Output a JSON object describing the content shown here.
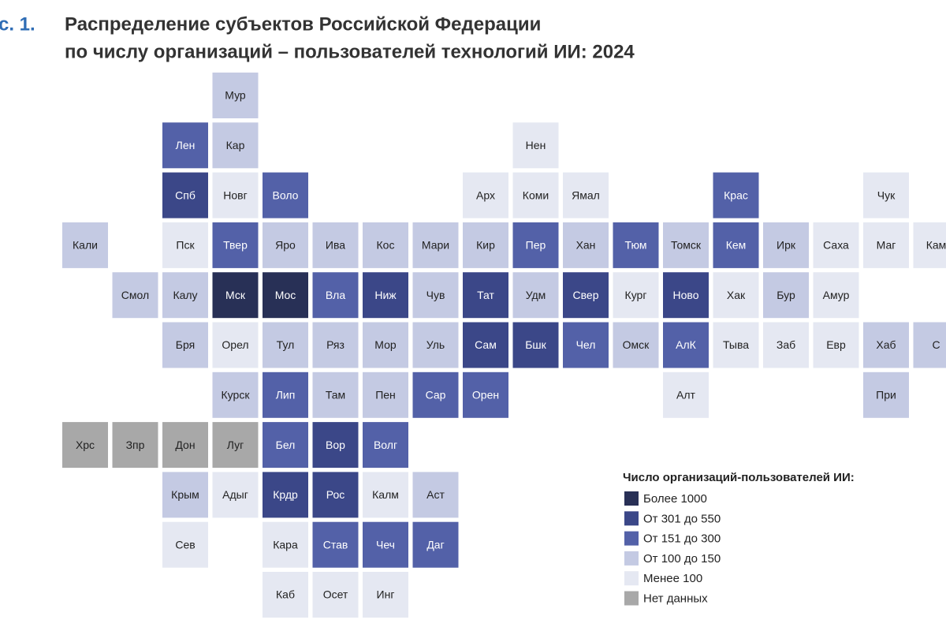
{
  "header": {
    "figure": "с. 1.",
    "title_line1": "Распределение субъектов Российской Федерации",
    "title_line2": "по числу организаций – пользователей технологий ИИ: 2024"
  },
  "legend": {
    "title": "Число организаций-пользователей ИИ:",
    "items": [
      {
        "label": "Более 1000",
        "color": "#283056"
      },
      {
        "label": "От 301 до 550",
        "color": "#3b4788"
      },
      {
        "label": "От 151 до 300",
        "color": "#5361a8"
      },
      {
        "label": "От 100 до 150",
        "color": "#c4cae3"
      },
      {
        "label": "Менее 100",
        "color": "#e5e8f2"
      },
      {
        "label": "Нет данных",
        "color": "#a8a8a8"
      }
    ]
  },
  "grid": [
    [
      null,
      null,
      null,
      {
        "label": "Мур",
        "level": 3
      },
      null,
      null,
      null,
      null,
      null,
      null,
      null,
      null,
      null,
      null,
      null,
      null,
      null,
      null
    ],
    [
      null,
      null,
      {
        "label": "Лен",
        "level": 2
      },
      {
        "label": "Кар",
        "level": 3
      },
      null,
      null,
      null,
      null,
      null,
      {
        "label": "Нен",
        "level": 4
      },
      null,
      null,
      null,
      null,
      null,
      null,
      null,
      null
    ],
    [
      null,
      null,
      {
        "label": "Спб",
        "level": 1
      },
      {
        "label": "Новг",
        "level": 4
      },
      {
        "label": "Воло",
        "level": 2
      },
      null,
      null,
      null,
      {
        "label": "Арх",
        "level": 4
      },
      {
        "label": "Коми",
        "level": 4
      },
      {
        "label": "Ямал",
        "level": 4
      },
      null,
      null,
      {
        "label": "Крас",
        "level": 2
      },
      null,
      null,
      {
        "label": "Чук",
        "level": 4
      },
      null
    ],
    [
      {
        "label": "Кали",
        "level": 3
      },
      null,
      {
        "label": "Пск",
        "level": 4
      },
      {
        "label": "Твер",
        "level": 2
      },
      {
        "label": "Яро",
        "level": 3
      },
      {
        "label": "Ива",
        "level": 3
      },
      {
        "label": "Кос",
        "level": 3
      },
      {
        "label": "Мари",
        "level": 3
      },
      {
        "label": "Кир",
        "level": 3
      },
      {
        "label": "Пер",
        "level": 2
      },
      {
        "label": "Хан",
        "level": 3
      },
      {
        "label": "Тюм",
        "level": 2
      },
      {
        "label": "Томск",
        "level": 3
      },
      {
        "label": "Кем",
        "level": 2
      },
      {
        "label": "Ирк",
        "level": 3
      },
      {
        "label": "Саха",
        "level": 4
      },
      {
        "label": "Маг",
        "level": 4
      },
      {
        "label": "Кам",
        "level": 4
      }
    ],
    [
      null,
      {
        "label": "Смол",
        "level": 3
      },
      {
        "label": "Калу",
        "level": 3
      },
      {
        "label": "Мск",
        "level": 0
      },
      {
        "label": "Мос",
        "level": 0
      },
      {
        "label": "Вла",
        "level": 2
      },
      {
        "label": "Ниж",
        "level": 1
      },
      {
        "label": "Чув",
        "level": 3
      },
      {
        "label": "Тат",
        "level": 1
      },
      {
        "label": "Удм",
        "level": 3
      },
      {
        "label": "Свер",
        "level": 1
      },
      {
        "label": "Кург",
        "level": 4
      },
      {
        "label": "Ново",
        "level": 1
      },
      {
        "label": "Хак",
        "level": 4
      },
      {
        "label": "Бур",
        "level": 3
      },
      {
        "label": "Амур",
        "level": 4
      },
      null,
      null
    ],
    [
      null,
      null,
      {
        "label": "Бря",
        "level": 3
      },
      {
        "label": "Орел",
        "level": 4
      },
      {
        "label": "Тул",
        "level": 3
      },
      {
        "label": "Ряз",
        "level": 3
      },
      {
        "label": "Мор",
        "level": 3
      },
      {
        "label": "Уль",
        "level": 3
      },
      {
        "label": "Сам",
        "level": 1
      },
      {
        "label": "Бшк",
        "level": 1
      },
      {
        "label": "Чел",
        "level": 2
      },
      {
        "label": "Омск",
        "level": 3
      },
      {
        "label": "АлК",
        "level": 2
      },
      {
        "label": "Тыва",
        "level": 4
      },
      {
        "label": "Заб",
        "level": 4
      },
      {
        "label": "Евр",
        "level": 4
      },
      {
        "label": "Хаб",
        "level": 3
      },
      {
        "label": "С",
        "level": 3
      }
    ],
    [
      null,
      null,
      null,
      {
        "label": "Курск",
        "level": 3
      },
      {
        "label": "Лип",
        "level": 2
      },
      {
        "label": "Там",
        "level": 3
      },
      {
        "label": "Пен",
        "level": 3
      },
      {
        "label": "Сар",
        "level": 2
      },
      {
        "label": "Орен",
        "level": 2
      },
      null,
      null,
      null,
      {
        "label": "Алт",
        "level": 4
      },
      null,
      null,
      null,
      {
        "label": "При",
        "level": 3
      },
      null
    ],
    [
      {
        "label": "Хрс",
        "level": 5
      },
      {
        "label": "Зпр",
        "level": 5
      },
      {
        "label": "Дон",
        "level": 5
      },
      {
        "label": "Луг",
        "level": 5
      },
      {
        "label": "Бел",
        "level": 2
      },
      {
        "label": "Вор",
        "level": 1
      },
      {
        "label": "Волг",
        "level": 2
      },
      null,
      null,
      null,
      null,
      null,
      null,
      null,
      null,
      null,
      null,
      null
    ],
    [
      null,
      null,
      {
        "label": "Крым",
        "level": 3
      },
      {
        "label": "Адыг",
        "level": 4
      },
      {
        "label": "Крдр",
        "level": 1
      },
      {
        "label": "Рос",
        "level": 1
      },
      {
        "label": "Калм",
        "level": 4
      },
      {
        "label": "Аст",
        "level": 3
      },
      null,
      null,
      null,
      null,
      null,
      null,
      null,
      null,
      null,
      null
    ],
    [
      null,
      null,
      {
        "label": "Сев",
        "level": 4
      },
      null,
      {
        "label": "Кара",
        "level": 4
      },
      {
        "label": "Став",
        "level": 2
      },
      {
        "label": "Чеч",
        "level": 2
      },
      {
        "label": "Даг",
        "level": 2
      },
      null,
      null,
      null,
      null,
      null,
      null,
      null,
      null,
      null,
      null
    ],
    [
      null,
      null,
      null,
      null,
      {
        "label": "Каб",
        "level": 4
      },
      {
        "label": "Осет",
        "level": 4
      },
      {
        "label": "Инг",
        "level": 4
      },
      null,
      null,
      null,
      null,
      null,
      null,
      null,
      null,
      null,
      null,
      null
    ]
  ]
}
